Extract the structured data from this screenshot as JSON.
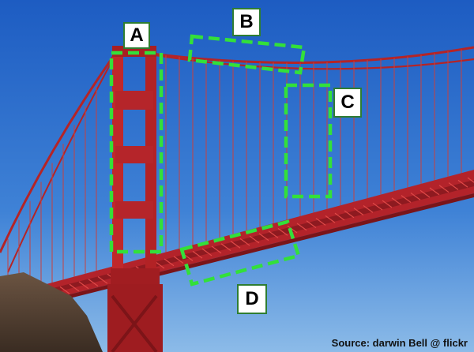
{
  "labels": {
    "a": "A",
    "b": "B",
    "c": "C",
    "d": "D"
  },
  "credit": "Source: darwin Bell @ flickr",
  "colors": {
    "sky_top": "#1f5fc4",
    "sky_bottom": "#6aa5e0",
    "bridge_red": "#c0282a",
    "marker_green": "#33e03a",
    "rock": "#5a4535"
  }
}
